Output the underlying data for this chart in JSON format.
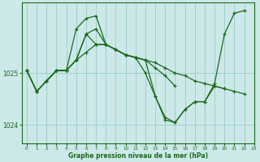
{
  "title": "Graphe pression niveau de la mer (hPa)",
  "background_color": "#cce8e8",
  "grid_color": "#99cccc",
  "line_color": "#1a6b1a",
  "xlim": [
    -0.5,
    23
  ],
  "ylim": [
    1023.65,
    1026.35
  ],
  "yticks": [
    1024,
    1025
  ],
  "xticks": [
    0,
    1,
    2,
    3,
    4,
    5,
    6,
    7,
    8,
    9,
    10,
    11,
    12,
    13,
    14,
    15,
    16,
    17,
    18,
    19,
    20,
    21,
    22,
    23
  ],
  "series": [
    {
      "x": [
        0,
        1,
        2,
        3,
        4,
        5,
        6,
        7,
        8,
        9,
        10,
        11,
        12,
        13,
        14,
        15,
        16,
        17,
        18,
        19,
        20,
        21,
        22
      ],
      "y": [
        1025.05,
        1024.65,
        1024.85,
        1025.05,
        1025.05,
        1025.25,
        1025.75,
        1025.85,
        1025.55,
        1025.45,
        1025.35,
        1025.3,
        1025.25,
        1025.2,
        1025.1,
        1025.0,
        1024.95,
        1024.85,
        1024.8,
        1024.75,
        1024.7,
        1024.65,
        1024.6
      ]
    },
    {
      "x": [
        0,
        1,
        2,
        3,
        4,
        5,
        6,
        7,
        8,
        9,
        10,
        11,
        12,
        13,
        14,
        15,
        16,
        17,
        18,
        19,
        20,
        21,
        22
      ],
      "y": [
        1025.05,
        1024.65,
        1024.85,
        1025.05,
        1025.05,
        1025.25,
        1025.75,
        1025.55,
        1025.55,
        1025.45,
        1025.35,
        1025.3,
        1025.0,
        1024.55,
        1024.1,
        1024.05,
        1024.3,
        1024.45,
        1024.45,
        1024.8,
        1025.75,
        1026.15,
        1026.2
      ]
    },
    {
      "x": [
        0,
        1,
        2,
        3,
        4,
        5,
        6,
        7,
        8,
        9,
        10,
        11,
        12,
        13,
        14,
        15
      ],
      "y": [
        1025.05,
        1024.65,
        1024.85,
        1025.05,
        1025.05,
        1025.85,
        1026.05,
        1026.1,
        1025.55,
        1025.45,
        1025.35,
        1025.3,
        1025.25,
        1025.1,
        1024.95,
        1024.75
      ]
    },
    {
      "x": [
        0,
        1,
        2,
        3,
        4,
        5,
        6,
        7,
        8,
        9,
        10,
        11,
        12,
        13,
        14,
        15,
        16,
        17,
        18,
        19,
        20
      ],
      "y": [
        1025.05,
        1024.65,
        1024.85,
        1025.05,
        1025.05,
        1025.25,
        1025.4,
        1025.55,
        1025.55,
        1025.45,
        1025.35,
        1025.3,
        1025.25,
        1024.55,
        1024.15,
        1024.05,
        1024.3,
        1024.45,
        1024.45,
        1024.75,
        1024.7
      ]
    }
  ],
  "figsize": [
    3.2,
    2.0
  ],
  "dpi": 100
}
